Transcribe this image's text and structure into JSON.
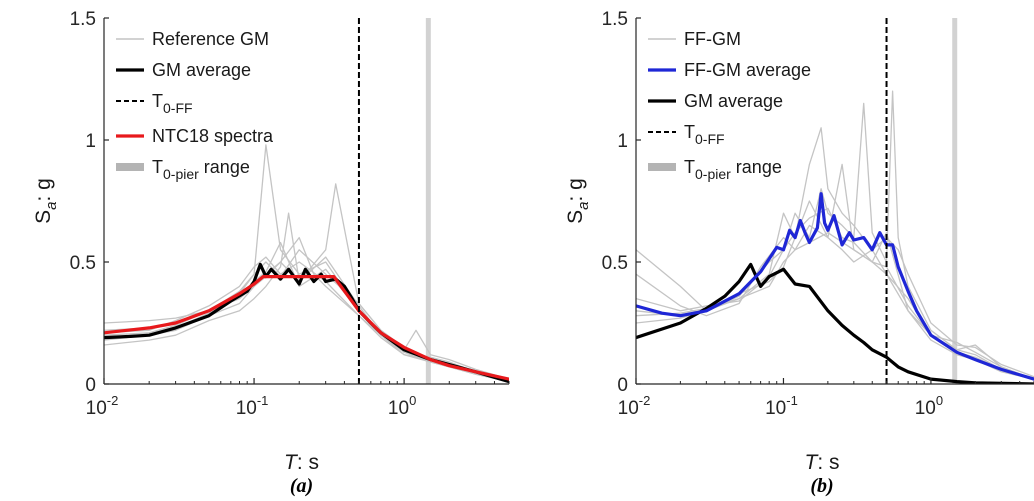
{
  "colors": {
    "records": "#c4c4c4",
    "gm_average": "#000000",
    "ntc18": "#e8191c",
    "ff_average": "#1f27d6",
    "t0_range": "#d2d2d2",
    "axis": "#262626"
  },
  "chart_data": [
    {
      "type": "line",
      "panel_label": "(a)",
      "xlabel": {
        "italic": "T",
        "rest": ": s"
      },
      "ylabel": {
        "main": "S",
        "sub": "a",
        "rest": ": g"
      },
      "xscale": "log",
      "xlim": [
        0.01,
        5
      ],
      "ylim": [
        0,
        1.5
      ],
      "x_ticks": [
        {
          "base": "10",
          "exp": "-2",
          "value": 0.01
        },
        {
          "base": "10",
          "exp": "-1",
          "value": 0.1
        },
        {
          "base": "10",
          "exp": "0",
          "value": 1
        }
      ],
      "y_ticks": [
        "0",
        "0.5",
        "1",
        "1.5"
      ],
      "grid": false,
      "legend_position": "top-left",
      "legend": [
        {
          "kind": "records",
          "text": "Reference GM"
        },
        {
          "kind": "gm_average",
          "text": "GM average"
        },
        {
          "kind": "t0ff",
          "main": "T",
          "sub": "0-FF"
        },
        {
          "kind": "ntc18",
          "text": "NTC18 spectra"
        },
        {
          "kind": "range",
          "main": "T",
          "sub": "0-pier",
          "after": " range"
        }
      ],
      "vertical_lines": [
        {
          "name": "T0-FF",
          "x": 0.5,
          "style": "dashed"
        },
        {
          "name": "T0-pier range",
          "x": 1.45,
          "style": "band"
        }
      ],
      "series": [
        {
          "name": "Reference GM",
          "style": "records",
          "x": [
            0.01,
            0.02,
            0.03,
            0.05,
            0.08,
            0.1,
            0.12,
            0.15,
            0.2,
            0.3,
            0.5,
            0.7,
            1,
            1.5,
            2,
            3,
            5
          ],
          "y": [
            0.22,
            0.23,
            0.25,
            0.3,
            0.38,
            0.45,
            0.98,
            0.55,
            0.45,
            0.5,
            0.3,
            0.2,
            0.12,
            0.1,
            0.08,
            0.05,
            0.01
          ]
        },
        {
          "name": "Reference GM",
          "style": "records",
          "x": [
            0.01,
            0.02,
            0.03,
            0.05,
            0.08,
            0.1,
            0.12,
            0.15,
            0.2,
            0.3,
            0.35,
            0.5,
            0.7,
            1,
            1.5,
            2,
            3,
            5
          ],
          "y": [
            0.18,
            0.2,
            0.22,
            0.28,
            0.33,
            0.4,
            0.45,
            0.5,
            0.42,
            0.55,
            0.82,
            0.33,
            0.22,
            0.15,
            0.1,
            0.08,
            0.05,
            0.02
          ]
        },
        {
          "name": "Reference GM",
          "style": "records",
          "x": [
            0.01,
            0.02,
            0.03,
            0.05,
            0.08,
            0.1,
            0.12,
            0.15,
            0.2,
            0.3,
            0.5,
            0.7,
            1,
            1.2,
            1.5,
            2,
            3,
            5
          ],
          "y": [
            0.25,
            0.26,
            0.27,
            0.3,
            0.37,
            0.45,
            0.5,
            0.44,
            0.55,
            0.45,
            0.33,
            0.22,
            0.14,
            0.22,
            0.12,
            0.1,
            0.06,
            0.02
          ]
        },
        {
          "name": "Reference GM",
          "style": "records",
          "x": [
            0.01,
            0.02,
            0.03,
            0.05,
            0.08,
            0.1,
            0.12,
            0.15,
            0.17,
            0.2,
            0.3,
            0.5,
            0.7,
            1,
            1.5,
            2,
            3,
            5
          ],
          "y": [
            0.16,
            0.18,
            0.2,
            0.26,
            0.3,
            0.35,
            0.4,
            0.48,
            0.7,
            0.42,
            0.52,
            0.32,
            0.2,
            0.13,
            0.09,
            0.07,
            0.04,
            0.01
          ]
        },
        {
          "name": "Reference GM",
          "style": "records",
          "x": [
            0.01,
            0.02,
            0.03,
            0.05,
            0.08,
            0.1,
            0.12,
            0.15,
            0.2,
            0.25,
            0.3,
            0.5,
            0.7,
            1,
            1.5,
            2,
            3,
            5
          ],
          "y": [
            0.2,
            0.21,
            0.24,
            0.3,
            0.35,
            0.4,
            0.44,
            0.5,
            0.6,
            0.45,
            0.4,
            0.28,
            0.2,
            0.14,
            0.1,
            0.08,
            0.05,
            0.01
          ]
        },
        {
          "name": "Reference GM",
          "style": "records",
          "x": [
            0.01,
            0.02,
            0.03,
            0.05,
            0.08,
            0.1,
            0.12,
            0.15,
            0.2,
            0.3,
            0.5,
            0.7,
            1,
            1.5,
            2,
            3,
            5
          ],
          "y": [
            0.19,
            0.2,
            0.23,
            0.29,
            0.36,
            0.42,
            0.46,
            0.58,
            0.4,
            0.47,
            0.3,
            0.21,
            0.13,
            0.11,
            0.09,
            0.05,
            0.02
          ]
        },
        {
          "name": "Reference GM",
          "style": "records",
          "x": [
            0.01,
            0.02,
            0.03,
            0.05,
            0.08,
            0.1,
            0.12,
            0.15,
            0.2,
            0.3,
            0.5,
            0.7,
            1,
            1.5,
            2,
            3,
            5
          ],
          "y": [
            0.21,
            0.22,
            0.26,
            0.32,
            0.4,
            0.48,
            0.52,
            0.45,
            0.5,
            0.42,
            0.28,
            0.19,
            0.12,
            0.09,
            0.07,
            0.04,
            0.01
          ]
        },
        {
          "name": "GM average",
          "style": "gm_average",
          "x": [
            0.01,
            0.015,
            0.02,
            0.03,
            0.05,
            0.07,
            0.09,
            0.1,
            0.11,
            0.12,
            0.13,
            0.15,
            0.17,
            0.2,
            0.22,
            0.25,
            0.28,
            0.3,
            0.35,
            0.4,
            0.45,
            0.5,
            0.6,
            0.7,
            1,
            1.5,
            2,
            3,
            5
          ],
          "y": [
            0.19,
            0.195,
            0.2,
            0.23,
            0.28,
            0.34,
            0.38,
            0.42,
            0.49,
            0.44,
            0.47,
            0.43,
            0.47,
            0.41,
            0.47,
            0.42,
            0.45,
            0.42,
            0.43,
            0.4,
            0.35,
            0.3,
            0.25,
            0.21,
            0.14,
            0.1,
            0.08,
            0.05,
            0.01
          ]
        },
        {
          "name": "NTC18 spectra",
          "style": "ntc18",
          "x": [
            0.01,
            0.02,
            0.03,
            0.05,
            0.08,
            0.1,
            0.115,
            0.2,
            0.34,
            0.5,
            0.7,
            1,
            1.5,
            2,
            3,
            5
          ],
          "y": [
            0.21,
            0.23,
            0.25,
            0.3,
            0.37,
            0.41,
            0.44,
            0.44,
            0.44,
            0.3,
            0.21,
            0.15,
            0.1,
            0.075,
            0.05,
            0.02
          ]
        }
      ]
    },
    {
      "type": "line",
      "panel_label": "(b)",
      "xlabel": {
        "italic": "T",
        "rest": ": s"
      },
      "ylabel": {
        "main": "S",
        "sub": "a",
        "rest": ": g"
      },
      "xscale": "log",
      "xlim": [
        0.01,
        5
      ],
      "ylim": [
        0,
        1.5
      ],
      "x_ticks": [
        {
          "base": "10",
          "exp": "-2",
          "value": 0.01
        },
        {
          "base": "10",
          "exp": "-1",
          "value": 0.1
        },
        {
          "base": "10",
          "exp": "0",
          "value": 1
        }
      ],
      "y_ticks": [
        "0",
        "0.5",
        "1",
        "1.5"
      ],
      "grid": false,
      "legend_position": "top-left",
      "legend": [
        {
          "kind": "records",
          "text": "FF-GM"
        },
        {
          "kind": "ff_average",
          "text": "FF-GM average"
        },
        {
          "kind": "gm_average",
          "text": "GM average"
        },
        {
          "kind": "t0ff",
          "main": "T",
          "sub": "0-FF"
        },
        {
          "kind": "range",
          "main": "T",
          "sub": "0-pier",
          "after": " range"
        }
      ],
      "vertical_lines": [
        {
          "name": "T0-FF",
          "x": 0.5,
          "style": "dashed"
        },
        {
          "name": "T0-pier range",
          "x": 1.45,
          "style": "band"
        }
      ],
      "series": [
        {
          "name": "FF-GM",
          "style": "records",
          "x": [
            0.01,
            0.02,
            0.03,
            0.05,
            0.08,
            0.1,
            0.12,
            0.15,
            0.18,
            0.2,
            0.25,
            0.3,
            0.4,
            0.5,
            0.6,
            0.7,
            1,
            1.5,
            2,
            3,
            5
          ],
          "y": [
            0.55,
            0.4,
            0.3,
            0.35,
            0.45,
            0.7,
            0.6,
            0.9,
            1.05,
            0.8,
            0.7,
            0.65,
            0.55,
            0.6,
            0.55,
            0.45,
            0.25,
            0.16,
            0.15,
            0.08,
            0.03
          ]
        },
        {
          "name": "FF-GM",
          "style": "records",
          "x": [
            0.01,
            0.02,
            0.03,
            0.05,
            0.08,
            0.1,
            0.12,
            0.15,
            0.18,
            0.2,
            0.25,
            0.3,
            0.35,
            0.4,
            0.5,
            0.55,
            0.6,
            0.7,
            1,
            1.5,
            2,
            3,
            5
          ],
          "y": [
            0.3,
            0.28,
            0.3,
            0.36,
            0.5,
            0.55,
            0.7,
            0.6,
            0.8,
            0.7,
            0.65,
            0.6,
            1.15,
            0.62,
            0.5,
            1.2,
            0.6,
            0.4,
            0.22,
            0.14,
            0.12,
            0.06,
            0.02
          ]
        },
        {
          "name": "FF-GM",
          "style": "records",
          "x": [
            0.01,
            0.02,
            0.03,
            0.05,
            0.07,
            0.1,
            0.12,
            0.15,
            0.2,
            0.25,
            0.3,
            0.4,
            0.5,
            0.7,
            1,
            1.5,
            2,
            3,
            5
          ],
          "y": [
            0.45,
            0.32,
            0.28,
            0.33,
            0.48,
            0.6,
            0.55,
            0.65,
            0.6,
            0.55,
            0.5,
            0.55,
            0.45,
            0.35,
            0.2,
            0.17,
            0.13,
            0.07,
            0.02
          ]
        },
        {
          "name": "FF-GM",
          "style": "records",
          "x": [
            0.01,
            0.02,
            0.03,
            0.05,
            0.08,
            0.1,
            0.12,
            0.15,
            0.2,
            0.25,
            0.3,
            0.4,
            0.5,
            0.7,
            1,
            1.5,
            2,
            3,
            5
          ],
          "y": [
            0.25,
            0.27,
            0.3,
            0.37,
            0.42,
            0.48,
            0.6,
            0.75,
            0.6,
            0.9,
            0.55,
            0.5,
            0.62,
            0.3,
            0.18,
            0.12,
            0.1,
            0.05,
            0.02
          ]
        },
        {
          "name": "FF-GM",
          "style": "records",
          "x": [
            0.01,
            0.02,
            0.03,
            0.05,
            0.08,
            0.1,
            0.12,
            0.15,
            0.2,
            0.25,
            0.3,
            0.4,
            0.5,
            0.7,
            1,
            1.5,
            2,
            3,
            5
          ],
          "y": [
            0.35,
            0.3,
            0.32,
            0.34,
            0.44,
            0.55,
            0.62,
            0.68,
            0.72,
            0.6,
            0.58,
            0.5,
            0.48,
            0.32,
            0.2,
            0.13,
            0.11,
            0.06,
            0.02
          ]
        },
        {
          "name": "FF-GM",
          "style": "records",
          "x": [
            0.01,
            0.02,
            0.03,
            0.05,
            0.08,
            0.1,
            0.12,
            0.15,
            0.2,
            0.3,
            0.4,
            0.5,
            0.7,
            1,
            1.5,
            2,
            3,
            5
          ],
          "y": [
            0.28,
            0.29,
            0.31,
            0.35,
            0.4,
            0.5,
            0.55,
            0.58,
            0.62,
            0.55,
            0.5,
            0.45,
            0.3,
            0.2,
            0.14,
            0.16,
            0.07,
            0.02
          ]
        },
        {
          "name": "FF-GM average",
          "style": "ff_average",
          "x": [
            0.01,
            0.015,
            0.02,
            0.03,
            0.05,
            0.07,
            0.09,
            0.1,
            0.11,
            0.12,
            0.13,
            0.14,
            0.15,
            0.17,
            0.18,
            0.19,
            0.2,
            0.22,
            0.25,
            0.28,
            0.3,
            0.35,
            0.4,
            0.45,
            0.5,
            0.55,
            0.6,
            0.7,
            0.8,
            1,
            1.5,
            2,
            3,
            5
          ],
          "y": [
            0.32,
            0.29,
            0.28,
            0.3,
            0.37,
            0.46,
            0.56,
            0.55,
            0.63,
            0.6,
            0.67,
            0.62,
            0.58,
            0.64,
            0.78,
            0.66,
            0.63,
            0.69,
            0.57,
            0.62,
            0.59,
            0.6,
            0.55,
            0.62,
            0.57,
            0.57,
            0.48,
            0.38,
            0.3,
            0.2,
            0.13,
            0.1,
            0.06,
            0.02
          ]
        },
        {
          "name": "GM average",
          "style": "gm_average",
          "x": [
            0.01,
            0.02,
            0.03,
            0.04,
            0.05,
            0.06,
            0.07,
            0.08,
            0.1,
            0.12,
            0.15,
            0.2,
            0.25,
            0.3,
            0.35,
            0.4,
            0.5,
            0.6,
            0.7,
            1,
            1.5,
            2,
            5
          ],
          "y": [
            0.19,
            0.25,
            0.31,
            0.36,
            0.42,
            0.49,
            0.4,
            0.44,
            0.47,
            0.41,
            0.4,
            0.3,
            0.24,
            0.2,
            0.17,
            0.14,
            0.11,
            0.07,
            0.05,
            0.02,
            0.01,
            0.005,
            0.0
          ]
        }
      ]
    }
  ]
}
